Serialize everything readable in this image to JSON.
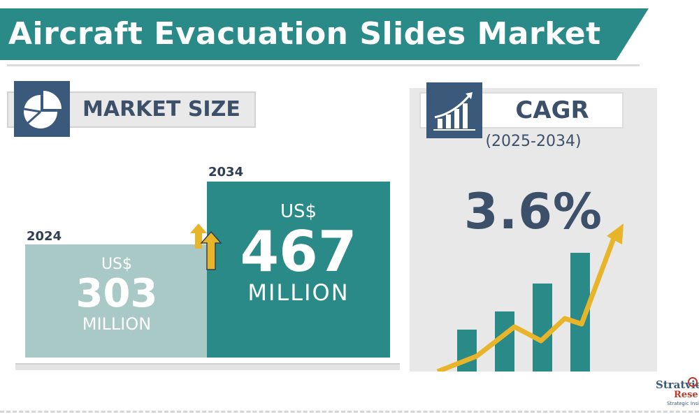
{
  "title": "Aircraft Evacuation Slides Market",
  "market_size": {
    "label": "MARKET SIZE",
    "bar_2024": {
      "year": "2024",
      "currency": "US$",
      "value": "303",
      "unit": "MILLION"
    },
    "bar_2034": {
      "year": "2034",
      "currency": "US$",
      "value": "467",
      "unit": "MILLION"
    }
  },
  "cagr": {
    "label": "CAGR",
    "period": "(2025-2034)",
    "value": "3.6%"
  },
  "logo": {
    "name": "Stratview",
    "line2": "Rese",
    "tagline": "Strategic Insight"
  },
  "colors": {
    "teal": "#2a8a87",
    "light_teal": "#a8c9c6",
    "navy": "#3b5a7b",
    "arrow_yellow": "#e8b52a"
  },
  "icons": [
    "pie-chart-icon",
    "bar-chart-growth-icon",
    "up-arrows-icon",
    "trend-arrow-icon"
  ],
  "chart_data": {
    "type": "bar",
    "categories": [
      "2024",
      "2034"
    ],
    "values": [
      303,
      467
    ],
    "ylabel": "US$ MILLION"
  }
}
